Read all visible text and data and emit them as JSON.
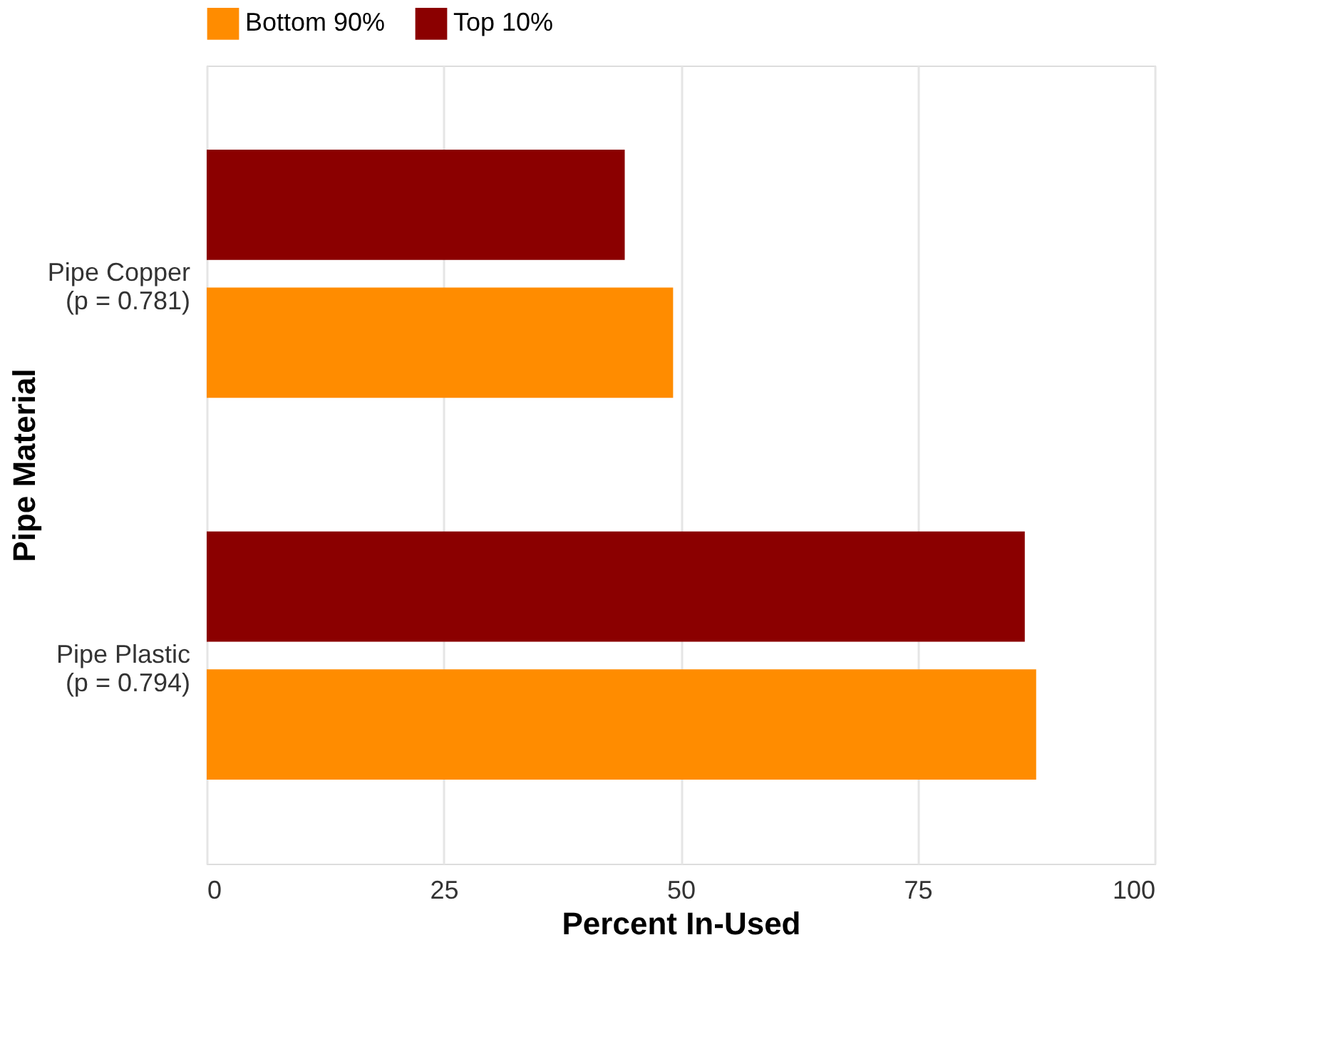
{
  "chart_data": {
    "type": "bar",
    "orientation": "horizontal",
    "xlabel": "Percent In-Used",
    "ylabel": "Pipe Material",
    "categories": [
      "Pipe Copper\n(p = 0.781)",
      "Pipe Plastic\n(p = 0.794)"
    ],
    "series": [
      {
        "name": "Bottom 90%",
        "color": "#ff8c00",
        "values": [
          49.2,
          87.5
        ]
      },
      {
        "name": "Top 10%",
        "color": "#8b0000",
        "values": [
          44.1,
          86.3
        ]
      }
    ],
    "xlim": [
      0,
      100
    ],
    "xticks": [
      0,
      25,
      50,
      75,
      100
    ],
    "grid": "x",
    "legend": "top"
  }
}
